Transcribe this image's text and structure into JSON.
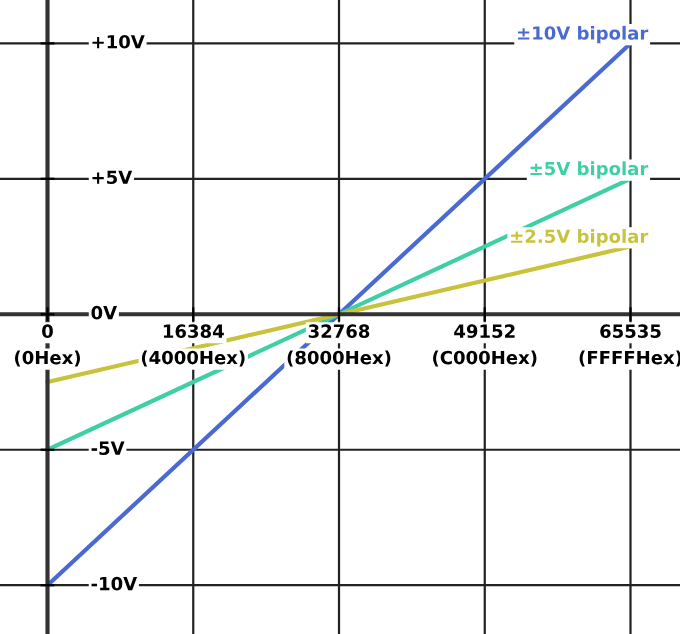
{
  "chart_data": {
    "type": "line",
    "x": [
      0,
      65535
    ],
    "series": [
      {
        "name": "±10V bipolar",
        "color": "#4a6ad2",
        "values": [
          -10,
          10
        ]
      },
      {
        "name": "±5V bipolar",
        "color": "#3ecfa4",
        "values": [
          -5,
          5
        ]
      },
      {
        "name": "±2.5V bipolar",
        "color": "#c8c23c",
        "values": [
          -2.5,
          2.5
        ]
      }
    ],
    "xlim": [
      -5340,
      71100
    ],
    "ylim": [
      -11.8,
      11.6
    ],
    "xticks": [
      0,
      16384,
      32768,
      49152,
      65535
    ],
    "annotations": [
      "(0Hex)",
      "(4000Hex)",
      "(8000Hex)",
      "(C000Hex)",
      "(FFFFHex)"
    ],
    "yticks": [
      {
        "value": 10,
        "label": "+10V"
      },
      {
        "value": 5,
        "label": "+5V"
      },
      {
        "value": 0,
        "label": "0V"
      },
      {
        "value": -5,
        "label": "-5V"
      },
      {
        "value": -10,
        "label": "-10V"
      }
    ],
    "grid": true,
    "legend": false,
    "marker": "none",
    "line_style": "solid"
  }
}
